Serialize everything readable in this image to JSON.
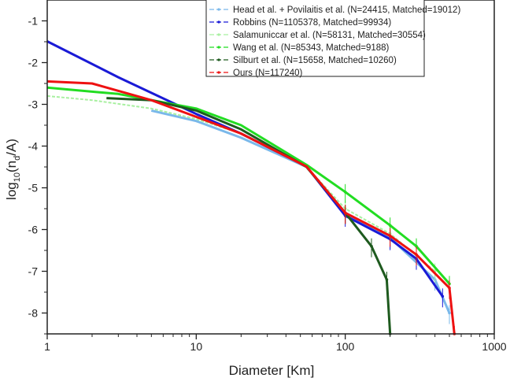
{
  "chart_data": {
    "type": "line",
    "title": "",
    "xlabel": "Diameter [Km]",
    "ylabel_main": "log",
    "ylabel_sub1": "10",
    "ylabel_mid": "(n",
    "ylabel_sub2": "d",
    "ylabel_end": "/A)",
    "x_scale": "log",
    "xlim": [
      1,
      1000
    ],
    "ylim": [
      -8.5,
      -0.5
    ],
    "x_ticks": [
      1,
      10,
      100,
      1000
    ],
    "x_tick_labels": [
      "1",
      "10",
      "100",
      "1000"
    ],
    "y_ticks": [
      -1,
      -2,
      -3,
      -4,
      -5,
      -6,
      -7,
      -8
    ],
    "y_tick_labels": [
      "-1",
      "-2",
      "-3",
      "-4",
      "-5",
      "-6",
      "-7",
      "-8"
    ],
    "grid": false,
    "legend_position": "top-right",
    "series": [
      {
        "name": "Head et al. + Povilaitis et al. (N=24415, Matched=19012)",
        "color": "#7ab8ea",
        "x": [
          5,
          10,
          20,
          55,
          100,
          200,
          400,
          500
        ],
        "y": [
          -3.15,
          -3.4,
          -3.8,
          -4.5,
          -5.6,
          -6.2,
          -7.2,
          -8.0
        ]
      },
      {
        "name": "Robbins (N=1105378, Matched=99934)",
        "color": "#1a1ad6",
        "x": [
          1,
          3,
          10,
          20,
          55,
          100,
          200,
          300,
          450
        ],
        "y": [
          -1.49,
          -2.35,
          -3.23,
          -3.7,
          -4.49,
          -5.67,
          -6.23,
          -6.7,
          -7.6
        ]
      },
      {
        "name": "Salamuniccar et al. (N=58131, Matched=30554)",
        "color": "#a8f0a0",
        "x": [
          1,
          2,
          5,
          10,
          20,
          55,
          100,
          200,
          400
        ],
        "y": [
          -2.8,
          -2.9,
          -3.1,
          -3.35,
          -3.7,
          -4.5,
          -5.5,
          -6.1,
          -7.0
        ]
      },
      {
        "name": "Wang et al. (N=85343, Matched=9188)",
        "color": "#22dd22",
        "x": [
          1,
          3,
          10,
          20,
          55,
          100,
          200,
          300,
          500
        ],
        "y": [
          -2.6,
          -2.75,
          -3.1,
          -3.5,
          -4.45,
          -5.1,
          -5.9,
          -6.4,
          -7.3
        ]
      },
      {
        "name": "Silburt et al. (N=15658, Matched=10260)",
        "color": "#1e5a1e",
        "x": [
          2.5,
          5,
          10,
          20,
          55,
          100,
          150,
          190,
          200
        ],
        "y": [
          -2.85,
          -2.9,
          -3.15,
          -3.6,
          -4.5,
          -5.6,
          -6.4,
          -7.2,
          -8.5
        ]
      },
      {
        "name": "Ours (N=117240)",
        "color": "#ee1111",
        "x": [
          1,
          2,
          5,
          10,
          20,
          55,
          100,
          200,
          300,
          500,
          540
        ],
        "y": [
          -2.45,
          -2.5,
          -2.9,
          -3.3,
          -3.7,
          -4.49,
          -5.6,
          -6.15,
          -6.6,
          -7.4,
          -8.5
        ]
      }
    ]
  }
}
